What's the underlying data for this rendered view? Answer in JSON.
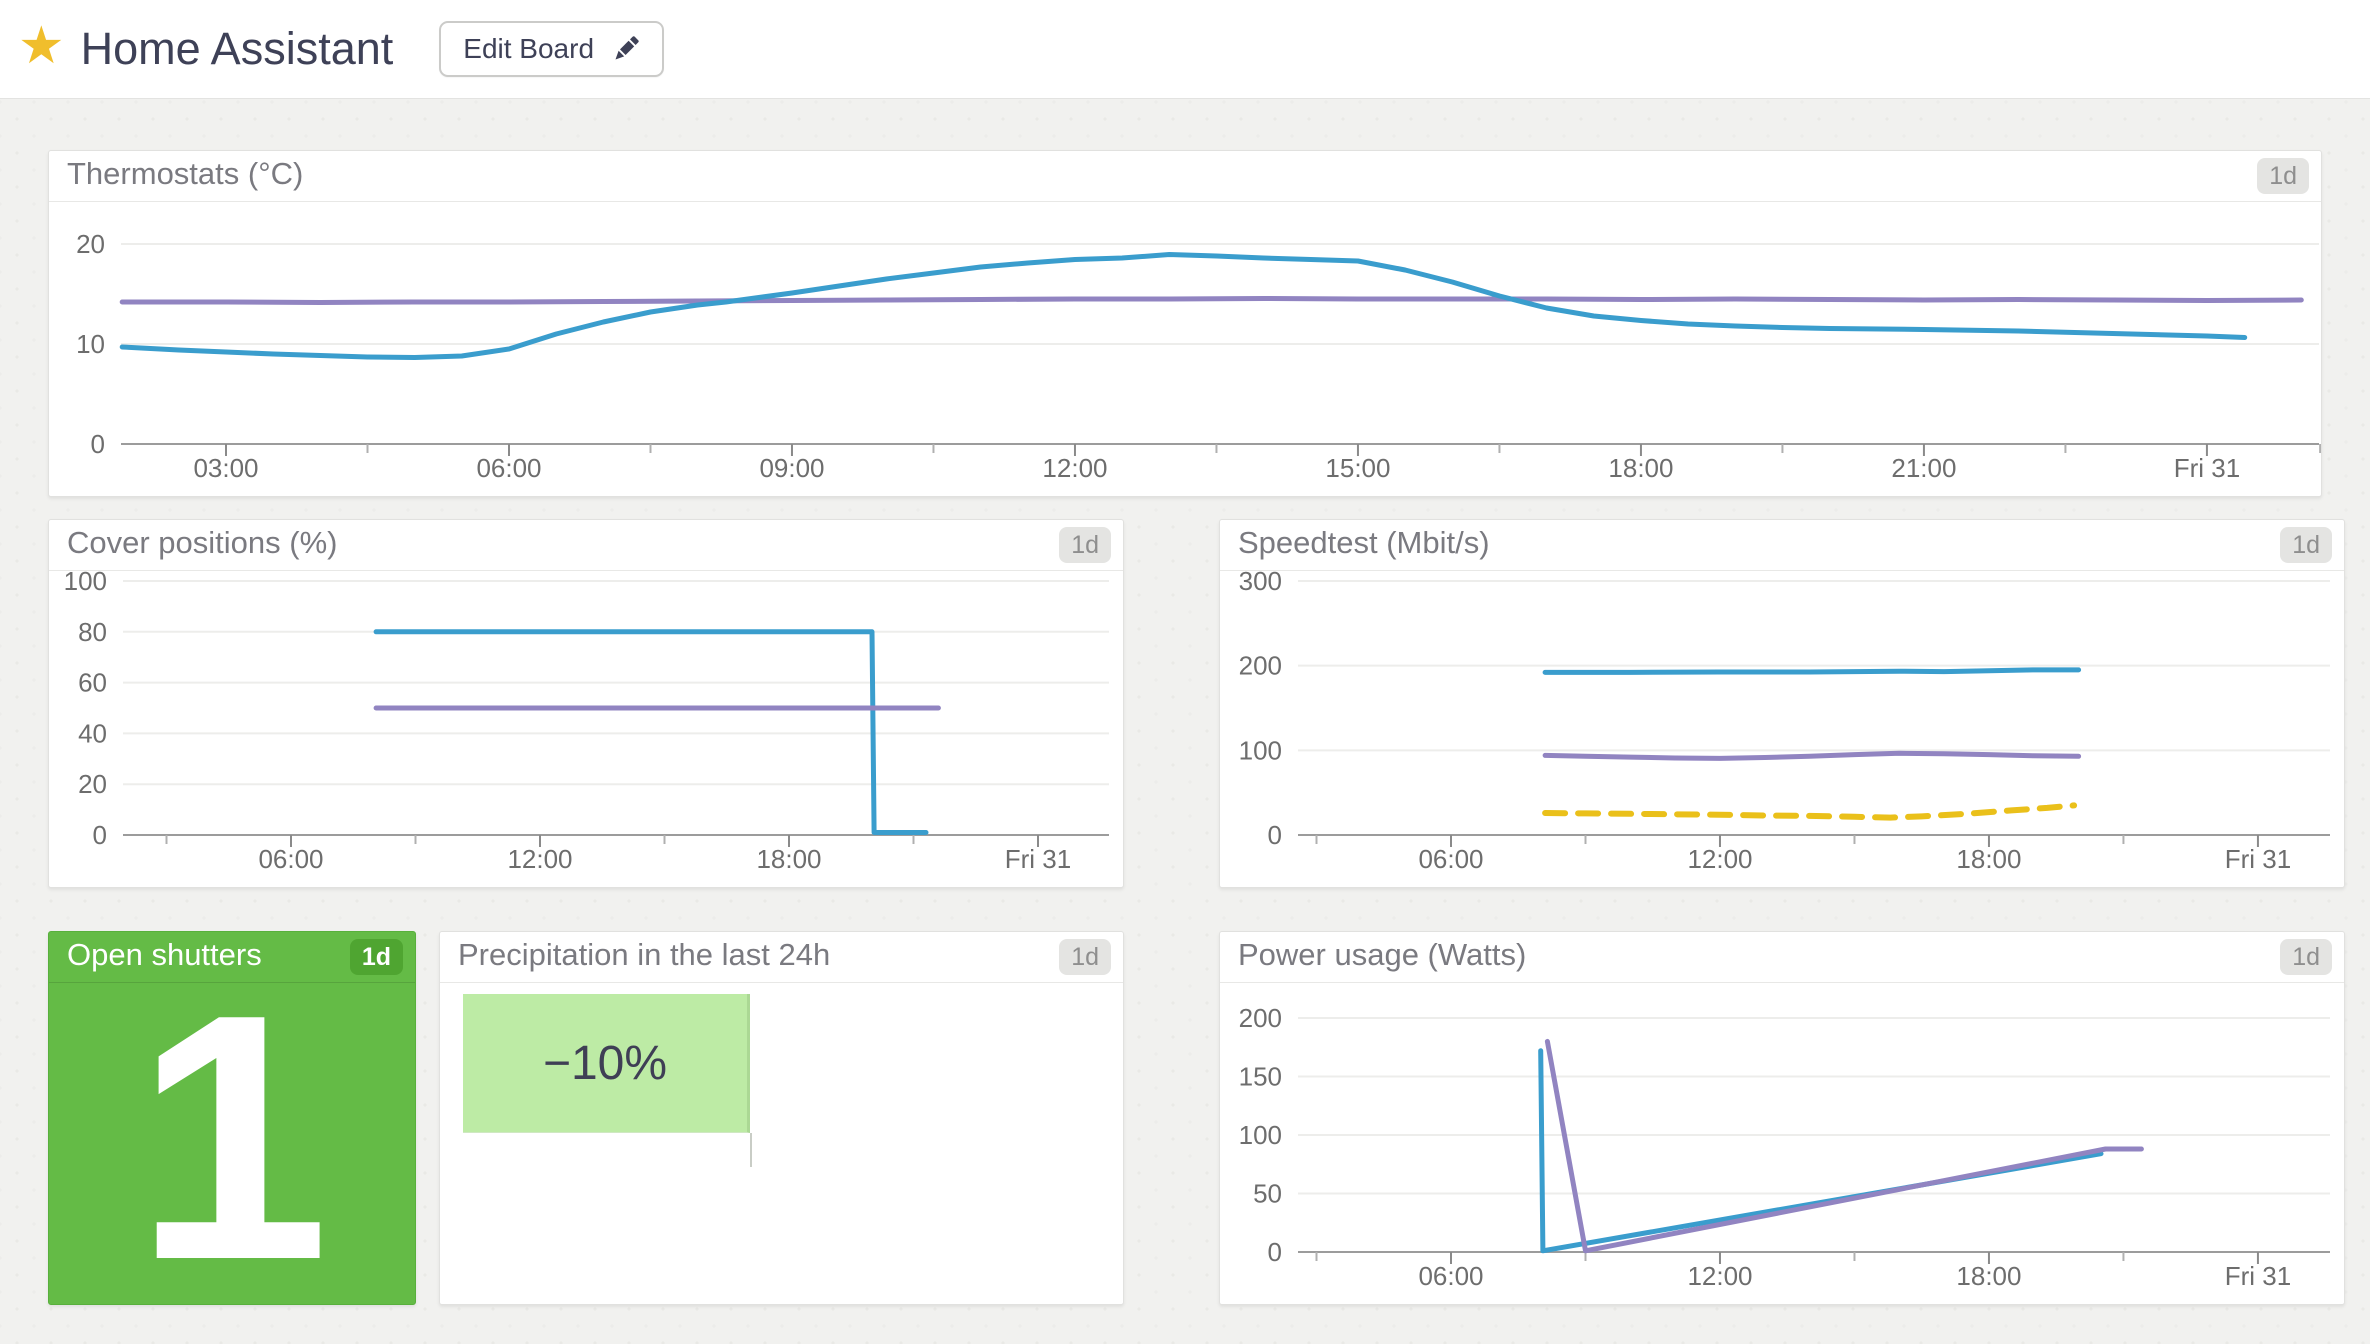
{
  "app": {
    "title": "Home Assistant",
    "edit_button": {
      "label": "Edit Board",
      "icon": "pencil"
    },
    "star_icon": "★"
  },
  "colors": {
    "blue": "#3A9DCD",
    "purple": "#9184C1",
    "yellow": "#EAC01A",
    "tile_green": "#64BB46",
    "tile_badge_green": "#4FA531",
    "precip_green": "#BDEBA5",
    "title_text": "#3E4157",
    "panel_header_text": "#7A7A80",
    "axis_text": "#6D6D6D",
    "grid": "#EDEDEB",
    "axis_line": "#9C9C9C",
    "badge_bg": "#E4E4E2",
    "badge_text": "#8E8E8E",
    "page_bg": "#F1F1EF"
  },
  "tiles": {
    "open_shutters": {
      "title": "Open shutters",
      "value": "1",
      "range": "1d"
    },
    "precipitation": {
      "title": "Precipitation in the last 24h",
      "value": "−10%",
      "range": "1d"
    }
  },
  "chart_data": [
    {
      "id": "thermostats",
      "type": "line",
      "title": "Thermostats (°C)",
      "range": "1d",
      "xlabel": "",
      "ylabel": "",
      "x_range": [
        1.9,
        25.2
      ],
      "y_range": [
        0,
        20
      ],
      "y_ticks": [
        0,
        10,
        20
      ],
      "x_ticks": [
        {
          "t": 3,
          "label": "03:00"
        },
        {
          "t": 6,
          "label": "06:00"
        },
        {
          "t": 9,
          "label": "09:00"
        },
        {
          "t": 12,
          "label": "12:00"
        },
        {
          "t": 15,
          "label": "15:00"
        },
        {
          "t": 18,
          "label": "18:00"
        },
        {
          "t": 21,
          "label": "21:00"
        },
        {
          "t": 24,
          "label": "Fri 31"
        }
      ],
      "x_minor_ticks": [
        4.5,
        7.5,
        10.5,
        13.5,
        16.5,
        19.5,
        22.5,
        25.2
      ],
      "series": [
        {
          "name": "purple",
          "color": "#9184C1",
          "dash": null,
          "points": [
            [
              1.9,
              14.2
            ],
            [
              3,
              14.2
            ],
            [
              4,
              14.15
            ],
            [
              5,
              14.2
            ],
            [
              6,
              14.2
            ],
            [
              7,
              14.25
            ],
            [
              8,
              14.3
            ],
            [
              9,
              14.35
            ],
            [
              10,
              14.4
            ],
            [
              11,
              14.45
            ],
            [
              12,
              14.5
            ],
            [
              13,
              14.5
            ],
            [
              14,
              14.55
            ],
            [
              15,
              14.5
            ],
            [
              16,
              14.5
            ],
            [
              17,
              14.5
            ],
            [
              18,
              14.45
            ],
            [
              19,
              14.5
            ],
            [
              20,
              14.45
            ],
            [
              21,
              14.4
            ],
            [
              22,
              14.45
            ],
            [
              23,
              14.4
            ],
            [
              24,
              14.35
            ],
            [
              25,
              14.4
            ]
          ]
        },
        {
          "name": "blue",
          "color": "#3A9DCD",
          "dash": null,
          "points": [
            [
              1.9,
              9.7
            ],
            [
              2.5,
              9.4
            ],
            [
              3,
              9.2
            ],
            [
              3.5,
              9.0
            ],
            [
              4,
              8.85
            ],
            [
              4.5,
              8.7
            ],
            [
              5,
              8.65
            ],
            [
              5.5,
              8.8
            ],
            [
              6,
              9.5
            ],
            [
              6.5,
              11.0
            ],
            [
              7,
              12.2
            ],
            [
              7.5,
              13.2
            ],
            [
              8,
              13.9
            ],
            [
              8.3,
              14.2
            ],
            [
              9,
              15.1
            ],
            [
              9.5,
              15.8
            ],
            [
              10,
              16.5
            ],
            [
              10.5,
              17.1
            ],
            [
              11,
              17.7
            ],
            [
              11.5,
              18.1
            ],
            [
              12,
              18.45
            ],
            [
              12.5,
              18.6
            ],
            [
              13,
              18.95
            ],
            [
              13.5,
              18.8
            ],
            [
              14,
              18.6
            ],
            [
              14.5,
              18.45
            ],
            [
              15,
              18.3
            ],
            [
              15.5,
              17.4
            ],
            [
              16,
              16.2
            ],
            [
              16.5,
              14.8
            ],
            [
              17,
              13.6
            ],
            [
              17.5,
              12.8
            ],
            [
              18,
              12.35
            ],
            [
              18.5,
              12.0
            ],
            [
              19,
              11.8
            ],
            [
              19.5,
              11.65
            ],
            [
              20,
              11.55
            ],
            [
              21,
              11.45
            ],
            [
              22,
              11.3
            ],
            [
              23,
              11.05
            ],
            [
              24,
              10.8
            ],
            [
              24.4,
              10.65
            ]
          ]
        }
      ]
    },
    {
      "id": "cover-positions",
      "type": "line",
      "title": "Cover positions (%)",
      "range": "1d",
      "xlabel": "",
      "ylabel": "",
      "x_range": [
        1.95,
        25.7
      ],
      "y_range": [
        0,
        100
      ],
      "y_ticks": [
        0,
        20,
        40,
        60,
        80,
        100
      ],
      "x_ticks": [
        {
          "t": 6,
          "label": "06:00"
        },
        {
          "t": 12,
          "label": "12:00"
        },
        {
          "t": 18,
          "label": "18:00"
        },
        {
          "t": 24,
          "label": "Fri 31"
        }
      ],
      "x_minor_ticks": [
        3,
        9,
        15,
        21
      ],
      "series": [
        {
          "name": "blue",
          "color": "#3A9DCD",
          "dash": null,
          "points": [
            [
              8.05,
              80
            ],
            [
              20.0,
              80
            ],
            [
              20.05,
              1
            ],
            [
              21.3,
              1
            ]
          ]
        },
        {
          "name": "purple",
          "color": "#9184C1",
          "dash": null,
          "points": [
            [
              8.05,
              50
            ],
            [
              21.6,
              50
            ]
          ]
        }
      ]
    },
    {
      "id": "speedtest",
      "type": "line",
      "title": "Speedtest (Mbit/s)",
      "range": "1d",
      "xlabel": "",
      "ylabel": "",
      "x_range": [
        2.55,
        25.6
      ],
      "y_range": [
        0,
        300
      ],
      "y_ticks": [
        0,
        100,
        200,
        300
      ],
      "x_ticks": [
        {
          "t": 6,
          "label": "06:00"
        },
        {
          "t": 12,
          "label": "12:00"
        },
        {
          "t": 18,
          "label": "18:00"
        },
        {
          "t": 24,
          "label": "Fri 31"
        }
      ],
      "x_minor_ticks": [
        3,
        9,
        15,
        21
      ],
      "series": [
        {
          "name": "blue",
          "color": "#3A9DCD",
          "dash": null,
          "points": [
            [
              8.1,
              192
            ],
            [
              10,
              192
            ],
            [
              12,
              192.5
            ],
            [
              14,
              192.5
            ],
            [
              15,
              193
            ],
            [
              16,
              193.5
            ],
            [
              17,
              193
            ],
            [
              18,
              194
            ],
            [
              19,
              195
            ],
            [
              20,
              195
            ]
          ]
        },
        {
          "name": "purple",
          "color": "#9184C1",
          "dash": null,
          "points": [
            [
              8.1,
              94
            ],
            [
              9,
              93
            ],
            [
              10,
              92
            ],
            [
              11,
              91
            ],
            [
              12,
              90.5
            ],
            [
              13,
              91.5
            ],
            [
              14,
              93
            ],
            [
              15,
              95
            ],
            [
              16,
              96.5
            ],
            [
              17,
              96
            ],
            [
              18,
              95
            ],
            [
              19,
              93.5
            ],
            [
              20,
              93
            ]
          ]
        },
        {
          "name": "yellow",
          "color": "#EAC01A",
          "dash": [
            20,
            13
          ],
          "points": [
            [
              8.1,
              26
            ],
            [
              9,
              25.5
            ],
            [
              10,
              25
            ],
            [
              11,
              24.5
            ],
            [
              12,
              24
            ],
            [
              13,
              23
            ],
            [
              14,
              22.5
            ],
            [
              15,
              21.5
            ],
            [
              15.8,
              20.5
            ],
            [
              16.5,
              22
            ],
            [
              17.5,
              25
            ],
            [
              18.5,
              29
            ],
            [
              19.3,
              32
            ],
            [
              19.9,
              35
            ]
          ]
        }
      ]
    },
    {
      "id": "power-usage",
      "type": "line",
      "title": "Power usage (Watts)",
      "range": "1d",
      "xlabel": "",
      "ylabel": "",
      "x_range": [
        2.55,
        25.6
      ],
      "y_range": [
        0,
        200
      ],
      "y_ticks": [
        0,
        50,
        100,
        150,
        200
      ],
      "x_ticks": [
        {
          "t": 6,
          "label": "06:00"
        },
        {
          "t": 12,
          "label": "12:00"
        },
        {
          "t": 18,
          "label": "18:00"
        },
        {
          "t": 24,
          "label": "Fri 31"
        }
      ],
      "x_minor_ticks": [
        3,
        9,
        15,
        21
      ],
      "series": [
        {
          "name": "blue",
          "color": "#3A9DCD",
          "dash": null,
          "points": [
            [
              8.0,
              172
            ],
            [
              8.05,
              1
            ],
            [
              20.5,
              84
            ]
          ]
        },
        {
          "name": "purple",
          "color": "#9184C1",
          "dash": null,
          "points": [
            [
              8.15,
              180
            ],
            [
              9.0,
              1
            ],
            [
              20.6,
              88
            ],
            [
              21.4,
              88
            ]
          ]
        }
      ]
    }
  ]
}
